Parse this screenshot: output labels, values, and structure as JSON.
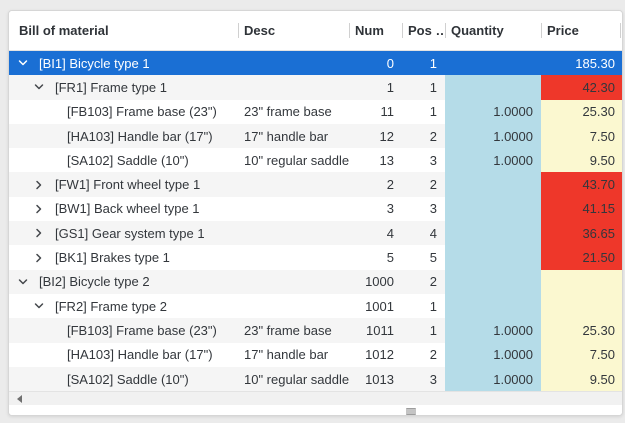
{
  "colors": {
    "selection_blue": "#1a6fd4",
    "price_alert_red": "#ee372a",
    "price_normal_yellow": "#fbf8d0",
    "quantity_column_blue": "#b5dce8",
    "alt_row_gray": "#f5f5f5",
    "page_background": "#ebebeb"
  },
  "table": {
    "columns": [
      {
        "label": "Bill of material"
      },
      {
        "label": "Desc"
      },
      {
        "label": "Num"
      },
      {
        "label": "Pos …"
      },
      {
        "label": "Quantity"
      },
      {
        "label": "Price"
      }
    ],
    "rows": [
      {
        "label": "[BI1] Bicycle type 1",
        "level": 0,
        "expander": "expanded",
        "desc": "",
        "num": "0",
        "pos": "1",
        "qty": "",
        "price": "185.30",
        "price_style": "none",
        "selected": true
      },
      {
        "label": "[FR1] Frame type 1",
        "level": 1,
        "expander": "expanded",
        "desc": "",
        "num": "1",
        "pos": "1",
        "qty": "",
        "price": "42.30",
        "price_style": "red",
        "alt": true
      },
      {
        "label": "[FB103] Frame base (23\")",
        "level": 2,
        "expander": "none",
        "desc": "23\" frame base",
        "num": "11",
        "pos": "1",
        "qty": "1.0000",
        "price": "25.30",
        "price_style": "yellow"
      },
      {
        "label": "[HA103] Handle bar (17\")",
        "level": 2,
        "expander": "none",
        "desc": "17\" handle bar",
        "num": "12",
        "pos": "2",
        "qty": "1.0000",
        "price": "7.50",
        "price_style": "yellow",
        "alt": true
      },
      {
        "label": "[SA102] Saddle (10\")",
        "level": 2,
        "expander": "none",
        "desc": "10\" regular saddle",
        "num": "13",
        "pos": "3",
        "qty": "1.0000",
        "price": "9.50",
        "price_style": "yellow"
      },
      {
        "label": "[FW1] Front wheel type 1",
        "level": 1,
        "expander": "collapsed",
        "desc": "",
        "num": "2",
        "pos": "2",
        "qty": "",
        "price": "43.70",
        "price_style": "red",
        "alt": true
      },
      {
        "label": "[BW1] Back wheel type 1",
        "level": 1,
        "expander": "collapsed",
        "desc": "",
        "num": "3",
        "pos": "3",
        "qty": "",
        "price": "41.15",
        "price_style": "red"
      },
      {
        "label": "[GS1] Gear system type 1",
        "level": 1,
        "expander": "collapsed",
        "desc": "",
        "num": "4",
        "pos": "4",
        "qty": "",
        "price": "36.65",
        "price_style": "red",
        "alt": true
      },
      {
        "label": "[BK1] Brakes type 1",
        "level": 1,
        "expander": "collapsed",
        "desc": "",
        "num": "5",
        "pos": "5",
        "qty": "",
        "price": "21.50",
        "price_style": "red"
      },
      {
        "label": "[BI2] Bicycle type 2",
        "level": 0,
        "expander": "expanded",
        "desc": "",
        "num": "1000",
        "pos": "2",
        "qty": "",
        "price": "",
        "price_style": "yellow",
        "alt": true
      },
      {
        "label": "[FR2] Frame type 2",
        "level": 1,
        "expander": "expanded",
        "desc": "",
        "num": "1001",
        "pos": "1",
        "qty": "",
        "price": "",
        "price_style": "yellow"
      },
      {
        "label": "[FB103] Frame base (23\")",
        "level": 2,
        "expander": "none",
        "desc": "23\" frame base",
        "num": "1011",
        "pos": "1",
        "qty": "1.0000",
        "price": "25.30",
        "price_style": "yellow",
        "alt": true
      },
      {
        "label": "[HA103] Handle bar (17\")",
        "level": 2,
        "expander": "none",
        "desc": "17\" handle bar",
        "num": "1012",
        "pos": "2",
        "qty": "1.0000",
        "price": "7.50",
        "price_style": "yellow"
      },
      {
        "label": "[SA102] Saddle (10\")",
        "level": 2,
        "expander": "none",
        "desc": "10\" regular saddle",
        "num": "1013",
        "pos": "3",
        "qty": "1.0000",
        "price": "9.50",
        "price_style": "yellow",
        "alt": true
      }
    ]
  }
}
